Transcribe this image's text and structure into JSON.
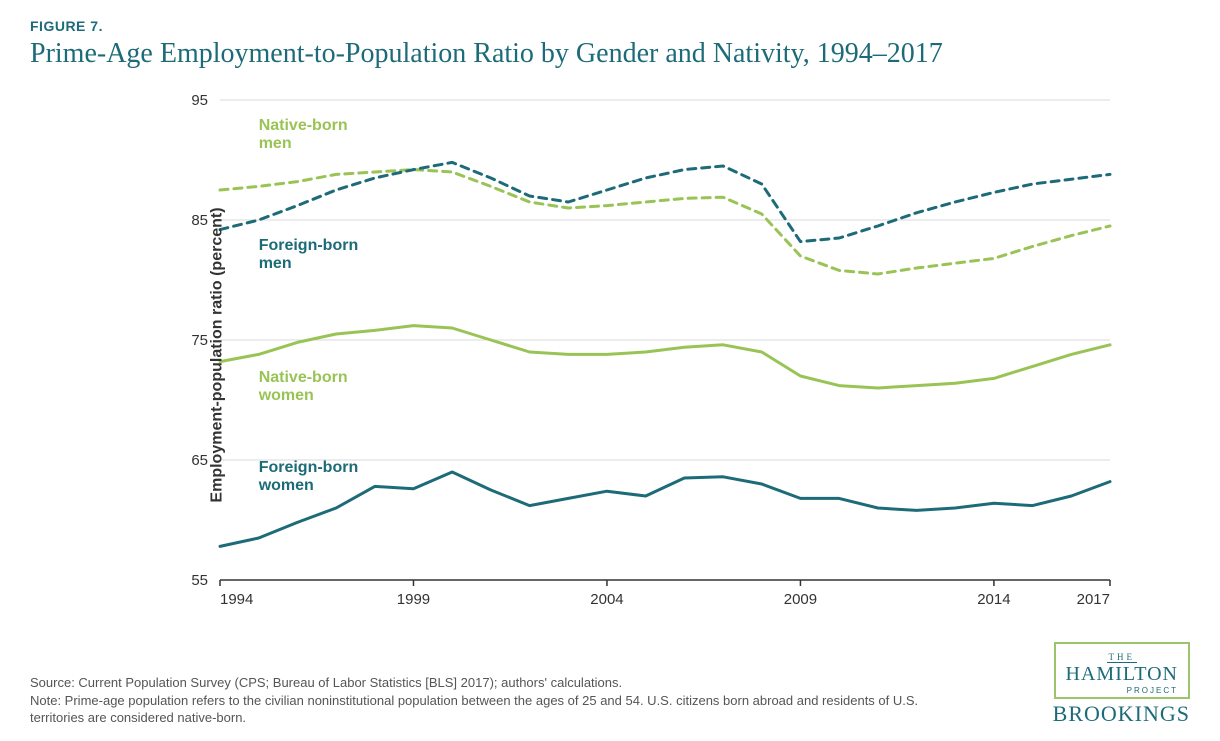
{
  "figure_label": "FIGURE 7.",
  "title": "Prime-Age Employment-to-Population Ratio by Gender and Nativity, 1994–2017",
  "y_axis_label": "Employment-population ratio (percent)",
  "chart": {
    "type": "line",
    "background_color": "#ffffff",
    "grid_color": "#d9d9d9",
    "axis_color": "#333333",
    "xlim": [
      1994,
      2017
    ],
    "ylim": [
      55,
      95
    ],
    "ytick_step": 10,
    "yticks": [
      55,
      65,
      75,
      85,
      95
    ],
    "xticks": [
      1994,
      1999,
      2004,
      2009,
      2014,
      2017
    ],
    "label_fontsize": 15,
    "series": [
      {
        "name": "Native-born men",
        "label_lines": [
          "Native-born",
          "men"
        ],
        "color": "#99c455",
        "dash": "8,6",
        "width": 3,
        "label_x": 1995,
        "label_y": 92.5,
        "years": [
          1994,
          1995,
          1996,
          1997,
          1998,
          1999,
          2000,
          2001,
          2002,
          2003,
          2004,
          2005,
          2006,
          2007,
          2008,
          2009,
          2010,
          2011,
          2012,
          2013,
          2014,
          2015,
          2016,
          2017
        ],
        "values": [
          87.5,
          87.8,
          88.2,
          88.8,
          89.0,
          89.2,
          89.0,
          87.8,
          86.5,
          86.0,
          86.2,
          86.5,
          86.8,
          86.9,
          85.5,
          82.0,
          80.8,
          80.5,
          81.0,
          81.4,
          81.8,
          82.8,
          83.7,
          84.5
        ]
      },
      {
        "name": "Foreign-born men",
        "label_lines": [
          "Foreign-born",
          "men"
        ],
        "color": "#1d6b78",
        "dash": "8,6",
        "width": 3,
        "label_x": 1995,
        "label_y": 82.5,
        "years": [
          1994,
          1995,
          1996,
          1997,
          1998,
          1999,
          2000,
          2001,
          2002,
          2003,
          2004,
          2005,
          2006,
          2007,
          2008,
          2009,
          2010,
          2011,
          2012,
          2013,
          2014,
          2015,
          2016,
          2017
        ],
        "values": [
          84.2,
          85.0,
          86.2,
          87.5,
          88.5,
          89.2,
          89.8,
          88.5,
          87.0,
          86.5,
          87.5,
          88.5,
          89.2,
          89.5,
          88.0,
          83.2,
          83.5,
          84.5,
          85.6,
          86.5,
          87.3,
          88.0,
          88.4,
          88.8
        ]
      },
      {
        "name": "Native-born women",
        "label_lines": [
          "Native-born",
          "women"
        ],
        "color": "#99c455",
        "dash": "",
        "width": 3,
        "label_x": 1995,
        "label_y": 71.5,
        "years": [
          1994,
          1995,
          1996,
          1997,
          1998,
          1999,
          2000,
          2001,
          2002,
          2003,
          2004,
          2005,
          2006,
          2007,
          2008,
          2009,
          2010,
          2011,
          2012,
          2013,
          2014,
          2015,
          2016,
          2017
        ],
        "values": [
          73.2,
          73.8,
          74.8,
          75.5,
          75.8,
          76.2,
          76.0,
          75.0,
          74.0,
          73.8,
          73.8,
          74.0,
          74.4,
          74.6,
          74.0,
          72.0,
          71.2,
          71.0,
          71.2,
          71.4,
          71.8,
          72.8,
          73.8,
          74.6
        ]
      },
      {
        "name": "Foreign-born women",
        "label_lines": [
          "Foreign-born",
          "women"
        ],
        "color": "#1d6b78",
        "dash": "",
        "width": 3,
        "label_x": 1995,
        "label_y": 64.0,
        "years": [
          1994,
          1995,
          1996,
          1997,
          1998,
          1999,
          2000,
          2001,
          2002,
          2003,
          2004,
          2005,
          2006,
          2007,
          2008,
          2009,
          2010,
          2011,
          2012,
          2013,
          2014,
          2015,
          2016,
          2017
        ],
        "values": [
          57.8,
          58.5,
          59.8,
          61.0,
          62.8,
          62.6,
          64.0,
          62.5,
          61.2,
          61.8,
          62.4,
          62.0,
          63.5,
          63.6,
          63.0,
          61.8,
          61.8,
          61.0,
          60.8,
          61.0,
          61.4,
          61.2,
          62.0,
          63.2
        ]
      }
    ]
  },
  "source_text": "Source: Current Population Survey (CPS; Bureau of Labor Statistics [BLS] 2017); authors' calculations.",
  "note_text": "Note: Prime-age population refers to the civilian noninstitutional population between the ages of 25 and 54. U.S. citizens born abroad and residents of U.S. territories are considered native-born.",
  "logo": {
    "the": "THE",
    "hamilton": "HAMILTON",
    "project": "PROJECT",
    "brookings": "BROOKINGS"
  }
}
